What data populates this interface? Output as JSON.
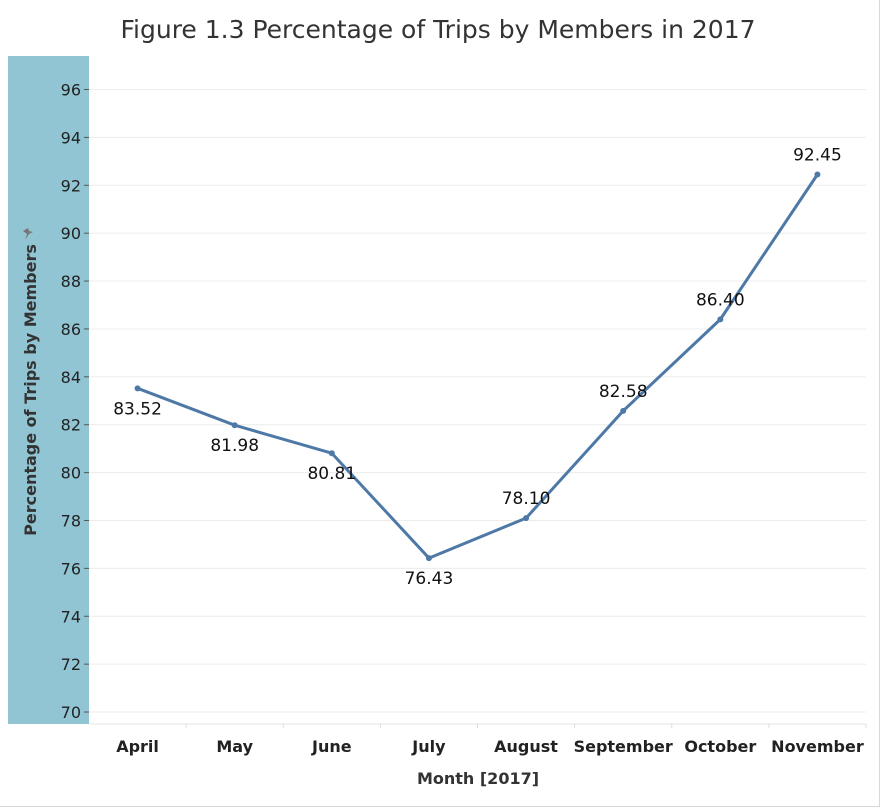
{
  "chart_data": {
    "type": "line",
    "title": "Figure 1.3 Percentage of Trips by Members in 2017",
    "xlabel": "Month [2017]",
    "ylabel": "Percentage of Trips by Members",
    "categories": [
      "April",
      "May",
      "June",
      "July",
      "August",
      "September",
      "October",
      "November"
    ],
    "series": [
      {
        "values": [
          83.52,
          81.98,
          80.81,
          76.43,
          78.1,
          82.58,
          86.4,
          92.45
        ],
        "labels": [
          "83.52",
          "81.98",
          "80.81",
          "76.43",
          "78.10",
          "82.58",
          "86.40",
          "92.45"
        ]
      }
    ],
    "yticks": [
      70,
      72,
      74,
      76,
      78,
      80,
      82,
      84,
      86,
      88,
      90,
      92,
      94,
      96
    ],
    "ylim": [
      69.5,
      97.4
    ],
    "grid": true,
    "colors": {
      "line": "#4e79a7",
      "y_axis_band": "#91c5d4"
    },
    "icons": {
      "ylabel_marker": "pin-icon"
    }
  }
}
